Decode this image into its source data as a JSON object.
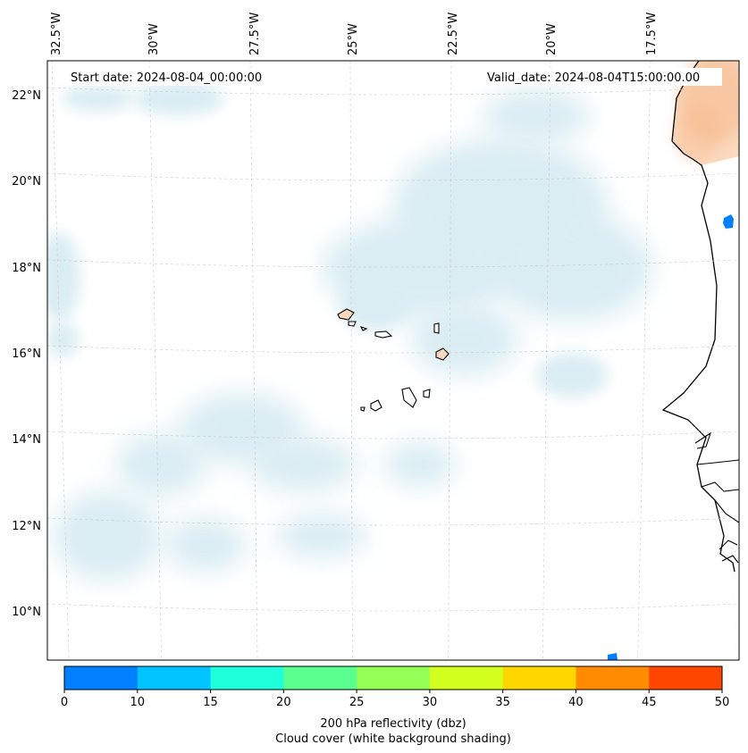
{
  "map": {
    "start_date_label": "Start date: 2024-08-04_00:00:00",
    "valid_date_label": "Valid_date: 2024-08-04T15:00:00.00",
    "longitude_labels": [
      "32.5°W",
      "30°W",
      "27.5°W",
      "25°W",
      "22.5°W",
      "20°W",
      "17.5°W"
    ],
    "latitude_labels": [
      "22°N",
      "20°N",
      "18°N",
      "16°N",
      "14°N",
      "12°N",
      "10°N"
    ],
    "colors": {
      "cloud_shading": "#d6ebf2",
      "land_fill": "#fbd9bf",
      "coastline": "#000000",
      "grid": "#cccccc"
    }
  },
  "colorbar": {
    "ticks": [
      "0",
      "10",
      "15",
      "20",
      "25",
      "30",
      "35",
      "40",
      "45",
      "50"
    ],
    "colors": [
      "#0080ff",
      "#00c3ff",
      "#1effdc",
      "#5aff8f",
      "#96ff55",
      "#d2ff1e",
      "#ffd700",
      "#ff8c00",
      "#ff4600"
    ],
    "label_line1": "200 hPa reflectivity (dbz)",
    "label_line2": "Cloud cover (white background shading)"
  }
}
